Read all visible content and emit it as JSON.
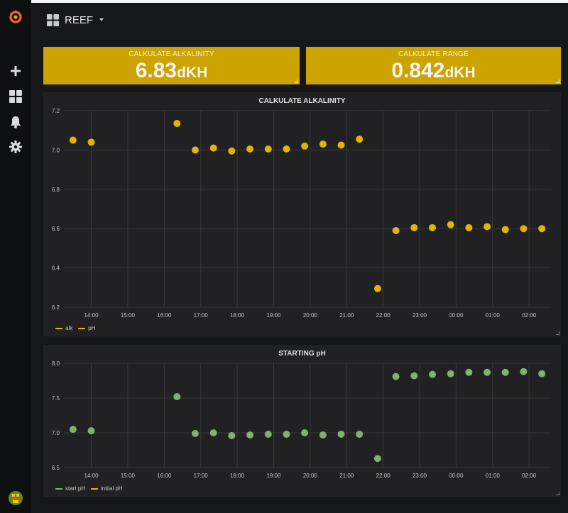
{
  "app": {
    "dashboard_title": "REEF"
  },
  "sidebar": {
    "items": [
      {
        "name": "create",
        "icon": "plus-icon"
      },
      {
        "name": "dashboards",
        "icon": "grid-icon"
      },
      {
        "name": "alerting",
        "icon": "bell-icon"
      },
      {
        "name": "configuration",
        "icon": "gear-icon"
      }
    ],
    "logo_icon": "grafana-logo-icon",
    "avatar_icon": "user-avatar-icon"
  },
  "stats": [
    {
      "title": "CALKULATE ALKALINITY",
      "value": "6.83",
      "unit": "dKH"
    },
    {
      "title": "CALKULATE RANGE",
      "value": "0.842",
      "unit": "dKH"
    }
  ],
  "colors": {
    "accent_yellow": "#cca300",
    "series_yellow": "#e0b400",
    "series_green": "#7eb26d",
    "panel_bg": "#212124"
  },
  "chart_data": [
    {
      "type": "scatter",
      "title": "CALKULATE ALKALINITY",
      "x_ticks": [
        "14:00",
        "15:00",
        "16:00",
        "17:00",
        "18:00",
        "19:00",
        "20:00",
        "21:00",
        "22:00",
        "23:00",
        "00:00",
        "01:00",
        "02:00"
      ],
      "y_ticks": [
        "7.2",
        "7.0",
        "6.8",
        "6.6",
        "6.4",
        "6.2"
      ],
      "xlim": [
        13.25,
        26.6
      ],
      "ylim": [
        6.2,
        7.2
      ],
      "grid": true,
      "legend": [
        "alk",
        "pH"
      ],
      "legend_placement": "bottom-left",
      "series": [
        {
          "name": "alk",
          "color": "#e0b400",
          "x": [
            13.5,
            14.0,
            16.35,
            16.85,
            17.35,
            17.85,
            18.35,
            18.85,
            19.35,
            19.85,
            20.35,
            20.85,
            21.35,
            21.85,
            22.35,
            22.85,
            23.35,
            23.85,
            24.35,
            24.85,
            25.35,
            25.85,
            26.35
          ],
          "y": [
            7.05,
            7.04,
            7.135,
            7.0,
            7.01,
            6.995,
            7.005,
            7.005,
            7.005,
            7.02,
            7.03,
            7.025,
            7.055,
            6.295,
            6.59,
            6.605,
            6.605,
            6.62,
            6.605,
            6.61,
            6.595,
            6.6,
            6.6
          ]
        }
      ]
    },
    {
      "type": "scatter",
      "title": "STARTING pH",
      "x_ticks": [
        "14:00",
        "15:00",
        "16:00",
        "17:00",
        "18:00",
        "19:00",
        "20:00",
        "21:00",
        "22:00",
        "23:00",
        "00:00",
        "01:00",
        "02:00"
      ],
      "y_ticks": [
        "8.0",
        "7.5",
        "7.0",
        "6.5"
      ],
      "xlim": [
        13.25,
        26.6
      ],
      "ylim": [
        6.5,
        8.0
      ],
      "grid": true,
      "legend": [
        "start pH",
        "initial pH"
      ],
      "legend_placement": "bottom-left",
      "series": [
        {
          "name": "start pH",
          "color": "#7eb26d",
          "x": [
            13.5,
            14.0,
            16.35,
            16.85,
            17.35,
            17.85,
            18.35,
            18.85,
            19.35,
            19.85,
            20.35,
            20.85,
            21.35,
            21.85,
            22.35,
            22.85,
            23.35,
            23.85,
            24.35,
            24.85,
            25.35,
            25.85,
            26.35
          ],
          "y": [
            7.05,
            7.03,
            7.52,
            6.99,
            7.0,
            6.96,
            6.97,
            6.98,
            6.98,
            7.0,
            6.97,
            6.98,
            6.98,
            6.63,
            7.81,
            7.82,
            7.84,
            7.85,
            7.87,
            7.87,
            7.87,
            7.88,
            7.85
          ]
        }
      ]
    }
  ]
}
